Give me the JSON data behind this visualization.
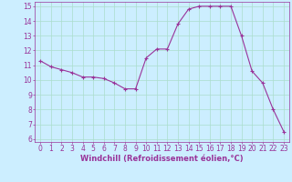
{
  "x": [
    0,
    1,
    2,
    3,
    4,
    5,
    6,
    7,
    8,
    9,
    10,
    11,
    12,
    13,
    14,
    15,
    16,
    17,
    18,
    19,
    20,
    21,
    22,
    23
  ],
  "y": [
    11.3,
    10.9,
    10.7,
    10.5,
    10.2,
    10.2,
    10.1,
    9.8,
    9.4,
    9.4,
    11.5,
    12.1,
    12.1,
    13.8,
    14.8,
    15.0,
    15.0,
    15.0,
    15.0,
    13.0,
    10.6,
    9.8,
    8.0,
    6.5
  ],
  "line_color": "#993399",
  "marker": "+",
  "marker_size": 3,
  "linewidth": 0.8,
  "markeredgewidth": 0.8,
  "xlabel": "Windchill (Refroidissement éolien,°C)",
  "xlim_min": -0.5,
  "xlim_max": 23.5,
  "ylim_min": 5.8,
  "ylim_max": 15.3,
  "yticks": [
    6,
    7,
    8,
    9,
    10,
    11,
    12,
    13,
    14,
    15
  ],
  "xticks": [
    0,
    1,
    2,
    3,
    4,
    5,
    6,
    7,
    8,
    9,
    10,
    11,
    12,
    13,
    14,
    15,
    16,
    17,
    18,
    19,
    20,
    21,
    22,
    23
  ],
  "bg_color": "#cceeff",
  "grid_color": "#aaddcc",
  "line_label_color": "#993399",
  "tick_fontsize": 5.5,
  "xlabel_fontsize": 6.0
}
